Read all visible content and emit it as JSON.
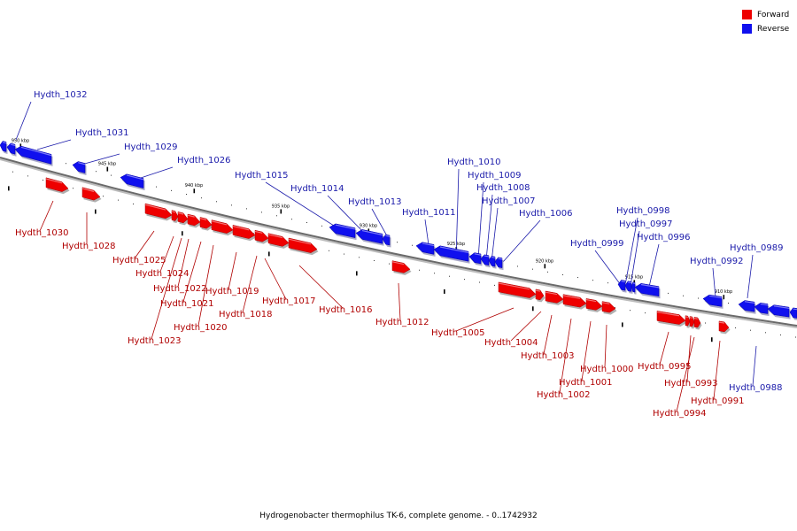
{
  "legend": {
    "forward_label": "Forward",
    "reverse_label": "Reverse",
    "forward_color": "#ee0000",
    "reverse_color": "#1010ee"
  },
  "caption": "Hydrogenobacter thermophilus TK-6, complete genome. - 0..1742932",
  "ticks": [
    "950 kbp",
    "945 kbp",
    "940 kbp",
    "935 kbp",
    "930 kbp",
    "925 kbp",
    "920 kbp",
    "915 kbp",
    "910 kbp"
  ],
  "genes_reverse": [
    "Hydth_1032",
    "Hydth_1031",
    "Hydth_1029",
    "Hydth_1026",
    "Hydth_1015",
    "Hydth_1014",
    "Hydth_1013",
    "Hydth_1011",
    "Hydth_1010",
    "Hydth_1009",
    "Hydth_1008",
    "Hydth_1007",
    "Hydth_1006",
    "Hydth_0999",
    "Hydth_0998",
    "Hydth_0997",
    "Hydth_0996",
    "Hydth_0992",
    "Hydth_0989",
    "Hydth_0988"
  ],
  "genes_forward": [
    "Hydth_1030",
    "Hydth_1028",
    "Hydth_1025",
    "Hydth_1024",
    "Hydth_1022",
    "Hydth_1021",
    "Hydth_1023",
    "Hydth_1020",
    "Hydth_1019",
    "Hydth_1018",
    "Hydth_1017",
    "Hydth_1016",
    "Hydth_1012",
    "Hydth_1005",
    "Hydth_1004",
    "Hydth_1003",
    "Hydth_1002",
    "Hydth_1001",
    "Hydth_1000",
    "Hydth_0995",
    "Hydth_0993",
    "Hydth_0994",
    "Hydth_0991"
  ]
}
